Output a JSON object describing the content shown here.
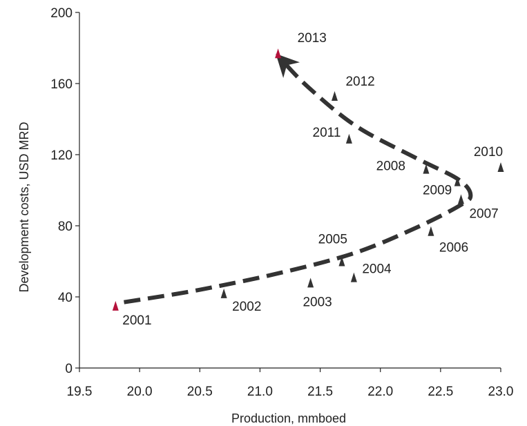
{
  "chart_data": {
    "type": "scatter",
    "xlabel": "Production, mmboed",
    "ylabel": "Development costs, USD MRD",
    "xlim": [
      19.5,
      23.0
    ],
    "ylim": [
      0,
      200
    ],
    "xticks": [
      "19.5",
      "20.0",
      "20.5",
      "21.0",
      "21.5",
      "22.0",
      "22.5",
      "23.0"
    ],
    "yticks": [
      "0",
      "40",
      "80",
      "120",
      "160",
      "200"
    ],
    "grid": false,
    "colors": {
      "marker": "#333333",
      "highlight": "#b5123b",
      "trend": "#333333",
      "axis": "#222222"
    },
    "points": [
      {
        "label": "2001",
        "x": 19.8,
        "y": 35,
        "highlight": true
      },
      {
        "label": "2002",
        "x": 20.7,
        "y": 42,
        "highlight": false
      },
      {
        "label": "2003",
        "x": 21.42,
        "y": 48,
        "highlight": false
      },
      {
        "label": "2004",
        "x": 21.78,
        "y": 51,
        "highlight": false
      },
      {
        "label": "2005",
        "x": 21.68,
        "y": 60,
        "highlight": false
      },
      {
        "label": "2006",
        "x": 22.42,
        "y": 77,
        "highlight": false
      },
      {
        "label": "2007",
        "x": 22.67,
        "y": 95,
        "highlight": false
      },
      {
        "label": "2008",
        "x": 22.38,
        "y": 112,
        "highlight": false
      },
      {
        "label": "2009",
        "x": 22.64,
        "y": 105,
        "highlight": false
      },
      {
        "label": "2010",
        "x": 23.0,
        "y": 113,
        "highlight": false
      },
      {
        "label": "2011",
        "x": 21.74,
        "y": 129,
        "highlight": false
      },
      {
        "label": "2012",
        "x": 21.62,
        "y": 153,
        "highlight": false
      },
      {
        "label": "2013",
        "x": 21.15,
        "y": 177,
        "highlight": true
      }
    ],
    "trend_line": {
      "style": "dashed-arrow",
      "points": [
        [
          19.87,
          37
        ],
        [
          20.5,
          44
        ],
        [
          21.2,
          54
        ],
        [
          21.8,
          65
        ],
        [
          22.3,
          79
        ],
        [
          22.65,
          91
        ],
        [
          22.75,
          97
        ],
        [
          22.65,
          106
        ],
        [
          22.3,
          118
        ],
        [
          21.8,
          136
        ],
        [
          21.4,
          158
        ],
        [
          21.17,
          174
        ]
      ]
    }
  }
}
